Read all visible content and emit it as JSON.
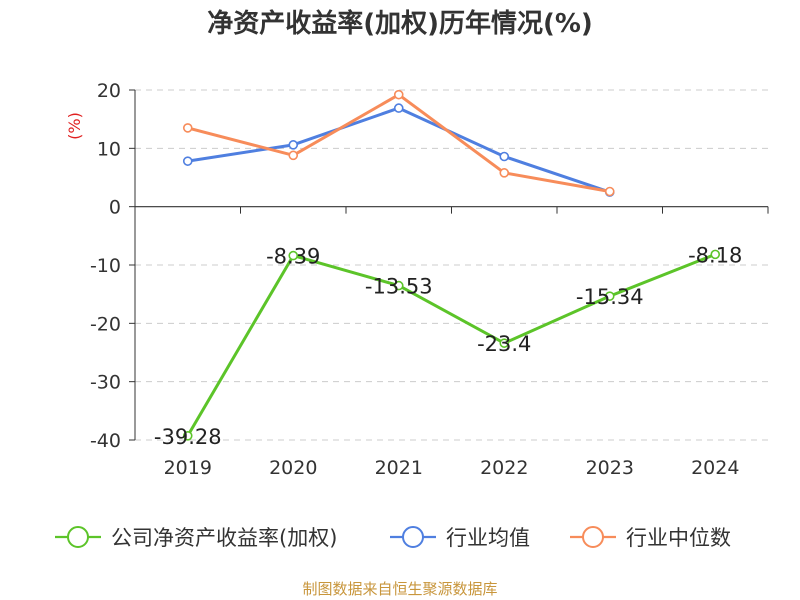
{
  "chart_data": {
    "type": "line",
    "title": "净资产收益率(加权)历年情况(%)",
    "ylabel": "(%)",
    "xlabel": "",
    "categories": [
      "2019",
      "2020",
      "2021",
      "2022",
      "2023",
      "2024"
    ],
    "ylim": [
      -40,
      20
    ],
    "yticks": [
      20,
      10,
      0,
      -10,
      -20,
      -30,
      -40
    ],
    "grid": true,
    "legend_position": "bottom",
    "series": [
      {
        "name": "公司净资产收益率(加权)",
        "color": "#5cc429",
        "values": [
          -39.28,
          -8.39,
          -13.53,
          -23.4,
          -15.34,
          -8.18
        ],
        "labels": [
          "-39.28",
          "-8.39",
          "-13.53",
          "-23.4",
          "-15.34",
          "-8.18"
        ]
      },
      {
        "name": "行业均值",
        "color": "#4f7fe0",
        "values": [
          7.8,
          10.6,
          16.9,
          8.6,
          2.5,
          null
        ]
      },
      {
        "name": "行业中位数",
        "color": "#f78c5a",
        "values": [
          13.5,
          8.8,
          19.2,
          5.8,
          2.6,
          null
        ]
      }
    ],
    "source": "制图数据来自恒生聚源数据库"
  }
}
